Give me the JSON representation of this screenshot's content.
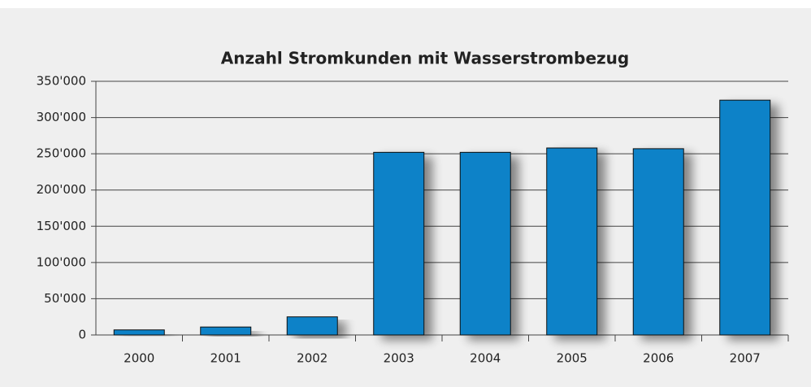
{
  "chart_data": {
    "type": "bar",
    "title": "Anzahl Stromkunden mit Wasserstrombezug",
    "categories": [
      "2000",
      "2001",
      "2002",
      "2003",
      "2004",
      "2005",
      "2006",
      "2007"
    ],
    "values": [
      7000,
      11000,
      25000,
      252000,
      252000,
      258000,
      257000,
      324000
    ],
    "color": "#0a82c8",
    "ylim": [
      0,
      350000
    ],
    "yticks": [
      0,
      {
        "value": 50000,
        "label": "50'000"
      },
      {
        "value": 100000,
        "label": "100'000"
      },
      {
        "value": 150000,
        "label": "150'000"
      },
      {
        "value": 200000,
        "label": "200'000"
      },
      {
        "value": 250000,
        "label": "250'000"
      },
      {
        "value": 300000,
        "label": "300'000"
      },
      {
        "value": 350000,
        "label": "350'000"
      }
    ],
    "grid": true
  }
}
